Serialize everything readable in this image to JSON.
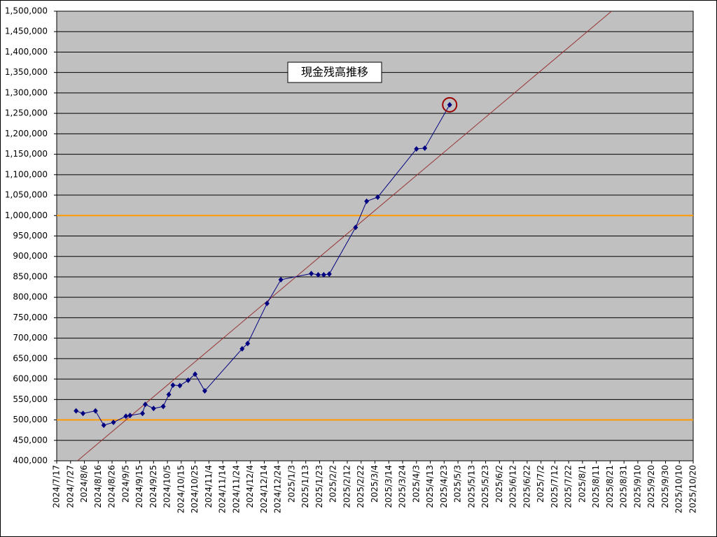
{
  "chart_data": {
    "type": "line",
    "annotation": "現金残高推移",
    "x": [
      "2024/7/31",
      "2024/8/5",
      "2024/8/14",
      "2024/8/20",
      "2024/8/27",
      "2024/9/5",
      "2024/9/8",
      "2024/9/17",
      "2024/9/19",
      "2024/9/25",
      "2024/10/2",
      "2024/10/6",
      "2024/10/9",
      "2024/10/14",
      "2024/10/20",
      "2024/10/25",
      "2024/11/1",
      "2024/11/28",
      "2024/12/2",
      "2024/12/16",
      "2024/12/26",
      "2025/1/17",
      "2025/1/22",
      "2025/1/26",
      "2025/1/30",
      "2025/2/18",
      "2025/2/26",
      "2025/3/6",
      "2025/4/3",
      "2025/4/9",
      "2025/4/27"
    ],
    "series": [
      {
        "color": "#000080",
        "values": [
          522000,
          516000,
          522000,
          487000,
          494000,
          509000,
          511000,
          516000,
          538000,
          528000,
          533000,
          562000,
          585000,
          584000,
          597000,
          612000,
          571000,
          674000,
          687000,
          785000,
          843000,
          858000,
          855000,
          855000,
          857000,
          971000,
          1035000,
          1045000,
          1163000,
          1165000,
          1271000
        ]
      }
    ],
    "trendline": {
      "color": "#993333",
      "x": [
        "2024/8/1",
        "2025/8/22"
      ],
      "values": [
        400000,
        1500000
      ]
    },
    "reference_lines": {
      "color": "#ff9900",
      "values": [
        500000,
        1000000
      ]
    },
    "highlight_color": "#990000",
    "xlim": [
      "2024/7/17",
      "2025/10/20"
    ],
    "xticks": [
      "2024/7/17",
      "2024/7/27",
      "2024/8/6",
      "2024/8/16",
      "2024/8/26",
      "2024/9/5",
      "2024/9/15",
      "2024/9/25",
      "2024/10/5",
      "2024/10/15",
      "2024/10/25",
      "2024/11/4",
      "2024/11/14",
      "2024/11/24",
      "2024/12/4",
      "2024/12/14",
      "2024/12/24",
      "2025/1/3",
      "2025/1/13",
      "2025/1/23",
      "2025/2/2",
      "2025/2/12",
      "2025/2/22",
      "2025/3/4",
      "2025/3/14",
      "2025/3/24",
      "2025/4/3",
      "2025/4/13",
      "2025/4/23",
      "2025/5/3",
      "2025/5/13",
      "2025/5/23",
      "2025/6/2",
      "2025/6/12",
      "2025/6/22",
      "2025/7/2",
      "2025/7/12",
      "2025/7/22",
      "2025/8/1",
      "2025/8/11",
      "2025/8/21",
      "2025/8/31",
      "2025/9/10",
      "2025/9/20",
      "2025/9/30",
      "2025/10/10",
      "2025/10/20"
    ],
    "ylim": [
      400000,
      1500000
    ],
    "yticks": [
      {
        "value": 400000,
        "label": "400,000"
      },
      {
        "value": 450000,
        "label": "450,000"
      },
      {
        "value": 500000,
        "label": "500,000"
      },
      {
        "value": 550000,
        "label": "550,000"
      },
      {
        "value": 600000,
        "label": "600,000"
      },
      {
        "value": 650000,
        "label": "650,000"
      },
      {
        "value": 700000,
        "label": "700,000"
      },
      {
        "value": 750000,
        "label": "750,000"
      },
      {
        "value": 800000,
        "label": "800,000"
      },
      {
        "value": 850000,
        "label": "850,000"
      },
      {
        "value": 900000,
        "label": "900,000"
      },
      {
        "value": 950000,
        "label": "950,000"
      },
      {
        "value": 1000000,
        "label": "1,000,000"
      },
      {
        "value": 1050000,
        "label": "1,050,000"
      },
      {
        "value": 1100000,
        "label": "1,100,000"
      },
      {
        "value": 1150000,
        "label": "1,150,000"
      },
      {
        "value": 1200000,
        "label": "1,200,000"
      },
      {
        "value": 1250000,
        "label": "1,250,000"
      },
      {
        "value": 1300000,
        "label": "1,300,000"
      },
      {
        "value": 1350000,
        "label": "1,350,000"
      },
      {
        "value": 1400000,
        "label": "1,400,000"
      },
      {
        "value": 1450000,
        "label": "1,450,000"
      },
      {
        "value": 1500000,
        "label": "1,500,000"
      }
    ],
    "grid": true,
    "plot_background": "#c0c0c0"
  }
}
